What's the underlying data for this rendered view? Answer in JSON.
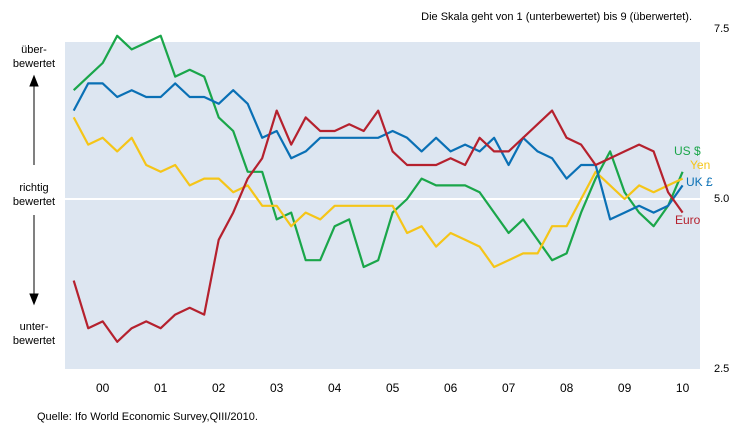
{
  "chart_data": {
    "type": "line",
    "annotation": "Die Skala geht von 1 (unterbewertet) bis 9 (überwertet).",
    "left_labels": [
      [
        "über-",
        "bewertet"
      ],
      [
        "richtig",
        "bewertet"
      ],
      [
        "unter-",
        "bewertet"
      ]
    ],
    "source": "Quelle: Ifo World Economic Survey,QIII/2010.",
    "x": [
      2000,
      2000.25,
      2000.5,
      2000.75,
      2001,
      2001.25,
      2001.5,
      2001.75,
      2002,
      2002.25,
      2002.5,
      2002.75,
      2003,
      2003.25,
      2003.5,
      2003.75,
      2004,
      2004.25,
      2004.5,
      2004.75,
      2005,
      2005.25,
      2005.5,
      2005.75,
      2006,
      2006.25,
      2006.5,
      2006.75,
      2007,
      2007.25,
      2007.5,
      2007.75,
      2008,
      2008.25,
      2008.5,
      2008.75,
      2009,
      2009.25,
      2009.5,
      2009.75,
      2010,
      2010.25,
      2010.5
    ],
    "xlim": [
      1999.85,
      2010.8
    ],
    "xticks": [
      {
        "value": 2000.5,
        "label": "00"
      },
      {
        "value": 2001.5,
        "label": "01"
      },
      {
        "value": 2002.5,
        "label": "02"
      },
      {
        "value": 2003.5,
        "label": "03"
      },
      {
        "value": 2004.5,
        "label": "04"
      },
      {
        "value": 2005.5,
        "label": "05"
      },
      {
        "value": 2006.5,
        "label": "06"
      },
      {
        "value": 2007.5,
        "label": "07"
      },
      {
        "value": 2008.5,
        "label": "08"
      },
      {
        "value": 2009.5,
        "label": "09"
      },
      {
        "value": 2010.5,
        "label": "10"
      }
    ],
    "ylim": [
      2.5,
      7.5
    ],
    "yticks": [
      2.5,
      {
        "value": 5,
        "label": "5.0"
      },
      7.5
    ],
    "reference_line": 5,
    "background": "#dde6f1",
    "series": [
      {
        "name": "US $",
        "color": "#1aa64a",
        "values": [
          6.6,
          6.8,
          7.0,
          7.4,
          7.2,
          7.3,
          7.4,
          6.8,
          6.9,
          6.8,
          6.2,
          6.0,
          5.4,
          5.4,
          4.7,
          4.8,
          4.1,
          4.1,
          4.6,
          4.7,
          4.0,
          4.1,
          4.8,
          5.0,
          5.3,
          5.2,
          5.2,
          5.2,
          5.1,
          4.8,
          4.5,
          4.7,
          4.4,
          4.1,
          4.2,
          4.8,
          5.3,
          5.7,
          5.1,
          4.8,
          4.6,
          4.9,
          5.4
        ]
      },
      {
        "name": "Yen",
        "color": "#f5c518",
        "values": [
          6.2,
          5.8,
          5.9,
          5.7,
          5.9,
          5.5,
          5.4,
          5.5,
          5.2,
          5.3,
          5.3,
          5.1,
          5.2,
          4.9,
          4.9,
          4.6,
          4.8,
          4.7,
          4.9,
          4.9,
          4.9,
          4.9,
          4.9,
          4.5,
          4.6,
          4.3,
          4.5,
          4.4,
          4.3,
          4.0,
          4.1,
          4.2,
          4.2,
          4.6,
          4.6,
          5.0,
          5.4,
          5.2,
          5.0,
          5.2,
          5.1,
          5.2,
          5.3
        ]
      },
      {
        "name": "UK £",
        "color": "#0a70b5",
        "values": [
          6.3,
          6.7,
          6.7,
          6.5,
          6.6,
          6.5,
          6.5,
          6.7,
          6.5,
          6.5,
          6.4,
          6.6,
          6.4,
          5.9,
          6.0,
          5.6,
          5.7,
          5.9,
          5.9,
          5.9,
          5.9,
          5.9,
          6.0,
          5.9,
          5.7,
          5.9,
          5.7,
          5.8,
          5.7,
          5.9,
          5.5,
          5.9,
          5.7,
          5.6,
          5.3,
          5.5,
          5.5,
          4.7,
          4.8,
          4.9,
          4.8,
          4.9,
          5.2
        ]
      },
      {
        "name": "Euro",
        "color": "#b5212e",
        "values": [
          3.8,
          3.1,
          3.2,
          2.9,
          3.1,
          3.2,
          3.1,
          3.3,
          3.4,
          3.3,
          4.4,
          4.8,
          5.3,
          5.6,
          6.3,
          5.8,
          6.2,
          6.0,
          6.0,
          6.1,
          6.0,
          6.3,
          5.7,
          5.5,
          5.5,
          5.5,
          5.6,
          5.5,
          5.9,
          5.7,
          5.7,
          5.9,
          6.1,
          6.3,
          5.9,
          5.8,
          5.5,
          5.6,
          5.7,
          5.8,
          5.7,
          5.1,
          4.8
        ]
      }
    ]
  }
}
